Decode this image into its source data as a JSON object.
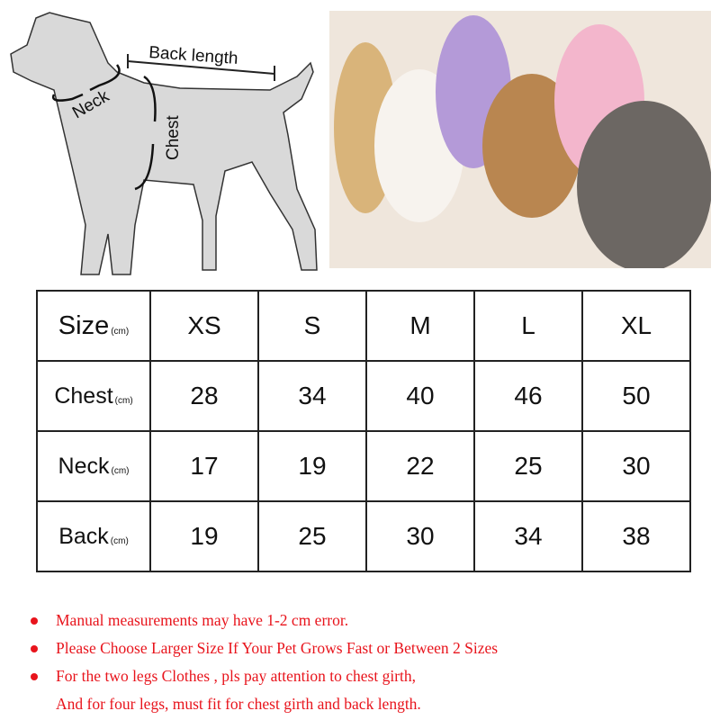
{
  "diagram": {
    "back_length": "Back length",
    "neck": "Neck",
    "chest": "Chest"
  },
  "table": {
    "unit": "(cm)",
    "header": {
      "label": "Size",
      "sizes": [
        "XS",
        "S",
        "M",
        "L",
        "XL"
      ]
    },
    "rows": [
      {
        "label": "Chest",
        "values": [
          "28",
          "34",
          "40",
          "46",
          "50"
        ]
      },
      {
        "label": "Neck",
        "values": [
          "17",
          "19",
          "22",
          "25",
          "30"
        ]
      },
      {
        "label": "Back",
        "values": [
          "19",
          "25",
          "30",
          "34",
          "38"
        ]
      }
    ]
  },
  "notes": [
    "Manual measurements may have 1-2 cm error.",
    "Please Choose Larger Size If Your Pet Grows Fast or Between 2 Sizes",
    "For the two legs Clothes , pls pay attention to chest girth,",
    "And for four legs, must fit for chest girth and back length."
  ],
  "colors": {
    "note_red": "#e8141c",
    "dog_fill": "#d9d9d9"
  }
}
